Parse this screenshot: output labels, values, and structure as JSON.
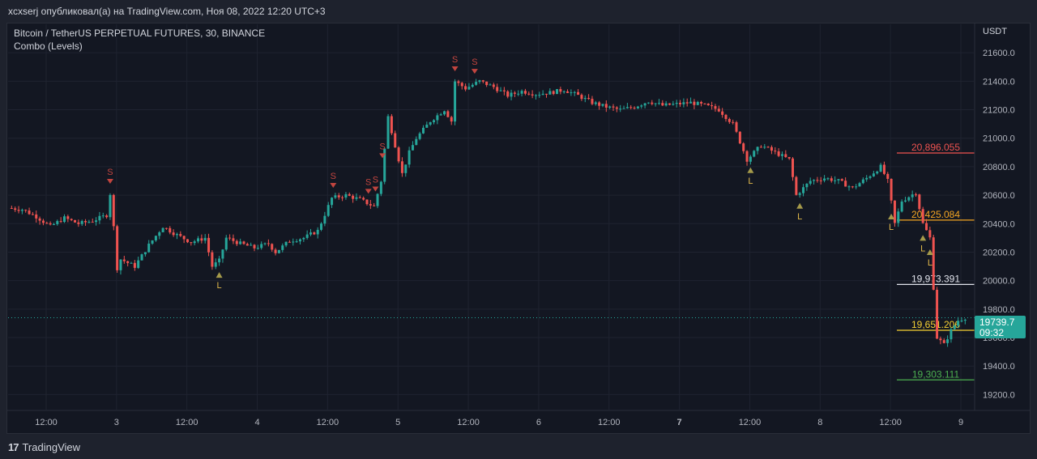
{
  "header": {
    "publish_line": "xcxserj опубликовал(а) на TradingView.com, Ноя 08, 2022 12:20 UTC+3"
  },
  "legend": {
    "symbol_line": "Bitcoin / TetherUS PERPETUAL FUTURES, 30, BINANCE",
    "indicator_line": "Combo (Levels)"
  },
  "footer": {
    "brand": "TradingView"
  },
  "price_tag": {
    "price": "19739.7",
    "countdown": "09:32"
  },
  "colors": {
    "up": "#26a69a",
    "down": "#ef5350",
    "background": "#131722",
    "sell_marker": "#c2453f",
    "buy_marker": "#a59a4a",
    "level_red": "#ef5350",
    "level_orange": "#f5a623",
    "level_white": "#e0e3eb",
    "level_yellow": "#f5d033",
    "level_green": "#4caf50"
  },
  "chart_data": {
    "type": "candlestick",
    "title": "Bitcoin / TetherUS PERPETUAL FUTURES, 30, BINANCE",
    "ylabel": "USDT",
    "ylim": [
      19100,
      21800
    ],
    "y_ticks": [
      "21600.0",
      "21400.0",
      "21200.0",
      "21000.0",
      "20800.0",
      "20600.0",
      "20400.0",
      "20200.0",
      "20000.0",
      "19800.0",
      "19600.0",
      "19400.0",
      "19200.0"
    ],
    "x_ticks": [
      "12:00",
      "3",
      "12:00",
      "4",
      "12:00",
      "5",
      "12:00",
      "6",
      "12:00",
      "7",
      "12:00",
      "8",
      "12:00",
      "9"
    ],
    "x_tick_bold": [
      false,
      false,
      false,
      false,
      false,
      false,
      false,
      false,
      false,
      true,
      false,
      false,
      false,
      false
    ],
    "price_path": [
      [
        0,
        20510
      ],
      [
        2,
        20500
      ],
      [
        4,
        20450
      ],
      [
        6,
        20380
      ],
      [
        8,
        20440
      ],
      [
        10,
        20400
      ],
      [
        12,
        20420
      ],
      [
        14,
        20460
      ],
      [
        14.8,
        20700
      ],
      [
        15.2,
        20050
      ],
      [
        16,
        20150
      ],
      [
        18,
        20100
      ],
      [
        20,
        20250
      ],
      [
        22,
        20380
      ],
      [
        24,
        20320
      ],
      [
        26,
        20270
      ],
      [
        28,
        20300
      ],
      [
        29,
        20100
      ],
      [
        30,
        20140
      ],
      [
        31,
        20300
      ],
      [
        33,
        20260
      ],
      [
        35,
        20230
      ],
      [
        37,
        20260
      ],
      [
        38,
        20200
      ],
      [
        40,
        20280
      ],
      [
        42,
        20300
      ],
      [
        44,
        20350
      ],
      [
        46,
        20580
      ],
      [
        48,
        20600
      ],
      [
        50,
        20570
      ],
      [
        52,
        20520
      ],
      [
        53,
        20700
      ],
      [
        54,
        21150
      ],
      [
        55,
        20950
      ],
      [
        56,
        20750
      ],
      [
        57,
        20900
      ],
      [
        58,
        21000
      ],
      [
        60,
        21120
      ],
      [
        62,
        21200
      ],
      [
        63,
        21120
      ],
      [
        63.5,
        21400
      ],
      [
        65,
        21350
      ],
      [
        67,
        21400
      ],
      [
        69,
        21360
      ],
      [
        71,
        21300
      ],
      [
        73,
        21330
      ],
      [
        75,
        21310
      ],
      [
        77,
        21320
      ],
      [
        79,
        21340
      ],
      [
        81,
        21300
      ],
      [
        83,
        21250
      ],
      [
        85,
        21220
      ],
      [
        87,
        21200
      ],
      [
        89,
        21220
      ],
      [
        91,
        21260
      ],
      [
        93,
        21230
      ],
      [
        95,
        21240
      ],
      [
        97,
        21250
      ],
      [
        99,
        21230
      ],
      [
        101,
        21200
      ],
      [
        103,
        21100
      ],
      [
        105,
        20850
      ],
      [
        107,
        20950
      ],
      [
        109,
        20900
      ],
      [
        111,
        20850
      ],
      [
        112,
        20600
      ],
      [
        114,
        20700
      ],
      [
        116,
        20720
      ],
      [
        118,
        20700
      ],
      [
        120,
        20650
      ],
      [
        122,
        20720
      ],
      [
        124,
        20800
      ],
      [
        125,
        20700
      ],
      [
        126,
        20400
      ],
      [
        127,
        20560
      ],
      [
        129,
        20620
      ],
      [
        130,
        20400
      ],
      [
        131,
        20300
      ],
      [
        132,
        19600
      ],
      [
        133,
        19550
      ],
      [
        134,
        19650
      ],
      [
        135,
        19720
      ],
      [
        136,
        19740
      ]
    ],
    "x_range": [
      0,
      137
    ],
    "current_price": 19739.7,
    "sell_signals_x": [
      14.5,
      46.2,
      51.2,
      52.2,
      53.2,
      63.5,
      66.3
    ],
    "sell_label": "S",
    "buy_signals_x": [
      30,
      105.5,
      112.5,
      125.5,
      130,
      131
    ],
    "buy_label": "L",
    "levels": [
      {
        "value": 20896.055,
        "label": "20,896.055",
        "color": "#ef5350"
      },
      {
        "value": 20425.084,
        "label": "20,425.084",
        "color": "#f5a623"
      },
      {
        "value": 19973.391,
        "label": "19,973.391",
        "color": "#e0e3eb"
      },
      {
        "value": 19651.206,
        "label": "19,651.206",
        "color": "#f5d033"
      },
      {
        "value": 19303.111,
        "label": "19,303.111",
        "color": "#4caf50"
      }
    ]
  }
}
